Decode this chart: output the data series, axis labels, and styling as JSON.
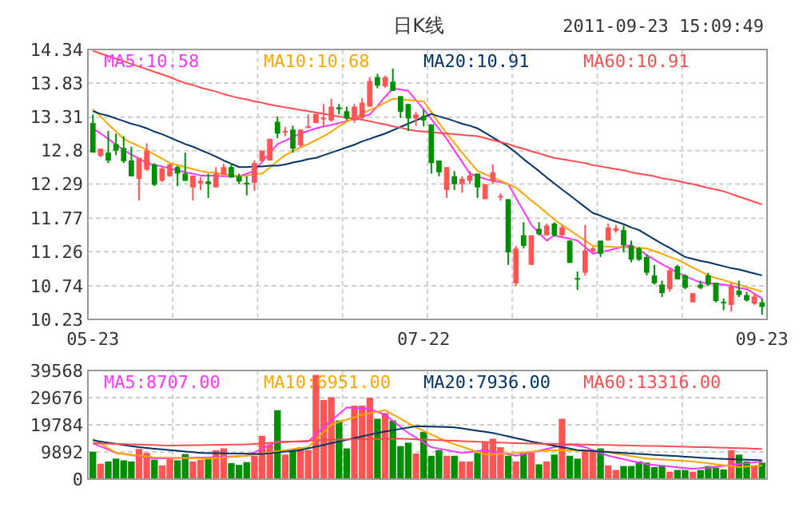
{
  "chart_data": [
    {
      "type": "candlestick",
      "title": "日K线",
      "annotations": [
        "2011-09-23 15:09:49"
      ],
      "categories": [
        "05-23",
        null,
        null,
        null,
        null,
        null,
        null,
        null,
        null,
        null,
        null,
        null,
        null,
        null,
        null,
        null,
        null,
        null,
        null,
        null,
        null,
        null,
        null,
        null,
        null,
        null,
        null,
        null,
        null,
        null,
        null,
        null,
        null,
        null,
        null,
        null,
        null,
        null,
        null,
        null,
        null,
        null,
        null,
        "07-22",
        null,
        null,
        null,
        null,
        null,
        null,
        null,
        null,
        null,
        null,
        null,
        null,
        null,
        null,
        null,
        null,
        null,
        null,
        null,
        null,
        null,
        null,
        null,
        null,
        null,
        null,
        null,
        null,
        null,
        null,
        null,
        null,
        null,
        null,
        null,
        null,
        null,
        null,
        null,
        null,
        null,
        null,
        null,
        "09-23"
      ],
      "ohlc": [
        [
          13.22,
          13.35,
          12.77,
          12.77
        ],
        [
          12.72,
          12.83,
          12.7,
          12.83
        ],
        [
          12.77,
          13.1,
          12.61,
          12.65
        ],
        [
          12.9,
          13.06,
          12.73,
          12.8
        ],
        [
          12.84,
          13.02,
          12.61,
          12.64
        ],
        [
          12.65,
          12.86,
          12.41,
          12.41
        ],
        [
          12.37,
          12.69,
          12.04,
          12.69
        ],
        [
          12.51,
          12.91,
          12.49,
          12.8
        ],
        [
          12.59,
          12.61,
          12.26,
          12.28
        ],
        [
          12.34,
          12.55,
          12.32,
          12.53
        ],
        [
          12.41,
          12.6,
          12.4,
          12.59
        ],
        [
          12.55,
          12.57,
          12.26,
          12.45
        ],
        [
          12.45,
          12.77,
          12.34,
          12.34
        ],
        [
          12.24,
          12.42,
          12.04,
          12.42
        ],
        [
          12.3,
          12.4,
          12.2,
          12.34
        ],
        [
          12.33,
          12.45,
          12.08,
          12.29
        ],
        [
          12.24,
          12.55,
          12.24,
          12.45
        ],
        [
          12.43,
          12.6,
          12.43,
          12.55
        ],
        [
          12.55,
          12.61,
          12.39,
          12.39
        ],
        [
          12.41,
          12.45,
          12.29,
          12.33
        ],
        [
          12.31,
          12.41,
          12.12,
          12.29
        ],
        [
          12.31,
          12.65,
          12.19,
          12.61
        ],
        [
          12.64,
          12.8,
          12.64,
          12.8
        ],
        [
          12.65,
          12.98,
          12.65,
          12.98
        ],
        [
          13.24,
          13.32,
          12.99,
          13.06
        ],
        [
          13.08,
          13.16,
          13.02,
          13.1
        ],
        [
          13.12,
          13.18,
          12.77,
          12.83
        ],
        [
          12.88,
          13.12,
          12.85,
          13.12
        ],
        [
          13.15,
          13.35,
          13.14,
          13.17
        ],
        [
          13.22,
          13.36,
          13.22,
          13.36
        ],
        [
          13.28,
          13.51,
          13.18,
          13.3
        ],
        [
          13.26,
          13.59,
          13.24,
          13.47
        ],
        [
          13.46,
          13.51,
          13.35,
          13.43
        ],
        [
          13.4,
          13.47,
          13.26,
          13.29
        ],
        [
          13.26,
          13.51,
          13.22,
          13.47
        ],
        [
          13.3,
          13.6,
          13.28,
          13.53
        ],
        [
          13.47,
          13.92,
          13.47,
          13.86
        ],
        [
          13.92,
          13.97,
          13.75,
          13.79
        ],
        [
          13.78,
          13.94,
          13.76,
          13.92
        ],
        [
          13.85,
          14.05,
          13.71,
          13.71
        ],
        [
          13.63,
          13.63,
          13.3,
          13.39
        ],
        [
          13.51,
          13.51,
          13.1,
          13.29
        ],
        [
          13.29,
          13.39,
          13.18,
          13.35
        ],
        [
          13.33,
          13.43,
          13.17,
          13.26
        ],
        [
          13.2,
          13.2,
          12.45,
          12.61
        ],
        [
          12.65,
          12.65,
          12.41,
          12.47
        ],
        [
          12.2,
          12.55,
          12.08,
          12.55
        ],
        [
          12.41,
          12.49,
          12.2,
          12.29
        ],
        [
          12.29,
          12.41,
          12.16,
          12.37
        ],
        [
          12.34,
          12.49,
          12.29,
          12.42
        ],
        [
          12.45,
          12.45,
          12.08,
          12.24
        ],
        [
          12.06,
          12.29,
          12.06,
          12.29
        ],
        [
          12.33,
          12.59,
          12.29,
          12.47
        ],
        [
          12.09,
          12.15,
          12.04,
          12.11
        ],
        [
          12.06,
          12.06,
          11.06,
          11.25
        ],
        [
          10.78,
          11.35,
          10.74,
          11.31
        ],
        [
          11.51,
          11.71,
          11.31,
          11.35
        ],
        [
          11.06,
          11.51,
          11.06,
          11.51
        ],
        [
          11.61,
          11.71,
          11.51,
          11.53
        ],
        [
          11.51,
          11.69,
          11.51,
          11.66
        ],
        [
          11.69,
          11.71,
          11.49,
          11.51
        ],
        [
          11.51,
          11.66,
          11.47,
          11.63
        ],
        [
          11.43,
          11.44,
          11.09,
          11.09
        ],
        [
          10.86,
          10.96,
          10.68,
          10.84
        ],
        [
          10.94,
          11.67,
          10.9,
          11.28
        ],
        [
          11.27,
          11.33,
          11.25,
          11.31
        ],
        [
          11.43,
          11.43,
          11.18,
          11.23
        ],
        [
          11.43,
          11.69,
          11.43,
          11.63
        ],
        [
          11.58,
          11.67,
          11.55,
          11.62
        ],
        [
          11.59,
          11.66,
          11.25,
          11.36
        ],
        [
          11.35,
          11.43,
          11.1,
          11.14
        ],
        [
          11.31,
          11.33,
          11.12,
          11.14
        ],
        [
          11.18,
          11.22,
          10.9,
          10.94
        ],
        [
          10.9,
          11.06,
          10.76,
          10.78
        ],
        [
          10.76,
          10.82,
          10.57,
          10.63
        ],
        [
          10.69,
          11.02,
          10.65,
          10.98
        ],
        [
          11.04,
          11.06,
          10.84,
          10.84
        ],
        [
          10.9,
          10.92,
          10.69,
          10.71
        ],
        [
          10.49,
          10.63,
          10.49,
          10.63
        ],
        [
          10.76,
          10.82,
          10.69,
          10.71
        ],
        [
          10.9,
          10.94,
          10.74,
          10.76
        ],
        [
          10.79,
          10.79,
          10.49,
          10.51
        ],
        [
          10.5,
          10.55,
          10.37,
          10.49
        ],
        [
          10.45,
          10.78,
          10.35,
          10.73
        ],
        [
          10.67,
          10.82,
          10.57,
          10.6
        ],
        [
          10.6,
          10.65,
          10.5,
          10.52
        ],
        [
          10.47,
          10.62,
          10.45,
          10.58
        ],
        [
          10.49,
          10.55,
          10.3,
          10.42
        ]
      ],
      "colors": [
        "#008f00",
        "#ff5555",
        "#008f00",
        "#008f00",
        "#008f00",
        "#008f00",
        "#ff5555",
        "#ff5555",
        "#008f00",
        "#ff5555",
        "#ff5555",
        "#008f00",
        "#008f00",
        "#ff5555",
        "#ff5555",
        "#008f00",
        "#ff5555",
        "#ff5555",
        "#008f00",
        "#008f00",
        "#008f00",
        "#ff5555",
        "#ff5555",
        "#ff5555",
        "#008f00",
        "#ff5555",
        "#008f00",
        "#ff5555",
        "#ff5555",
        "#ff5555",
        "#ff5555",
        "#ff5555",
        "#008f00",
        "#008f00",
        "#ff5555",
        "#ff5555",
        "#ff5555",
        "#008f00",
        "#ff5555",
        "#008f00",
        "#008f00",
        "#008f00",
        "#ff5555",
        "#008f00",
        "#008f00",
        "#008f00",
        "#ff5555",
        "#008f00",
        "#ff5555",
        "#ff5555",
        "#008f00",
        "#ff5555",
        "#ff5555",
        "#ff5555",
        "#008f00",
        "#ff5555",
        "#008f00",
        "#ff5555",
        "#008f00",
        "#ff5555",
        "#008f00",
        "#ff5555",
        "#008f00",
        "#008f00",
        "#ff5555",
        "#ff5555",
        "#008f00",
        "#ff5555",
        "#ff5555",
        "#008f00",
        "#008f00",
        "#008f00",
        "#008f00",
        "#008f00",
        "#008f00",
        "#ff5555",
        "#008f00",
        "#008f00",
        "#ff5555",
        "#008f00",
        "#008f00",
        "#008f00",
        "#008f00",
        "#ff5555",
        "#008f00",
        "#008f00",
        "#ff5555",
        "#008f00"
      ],
      "series": [
        {
          "type": "line",
          "name": "MA5:10.58",
          "color": "#ff33ff",
          "values": [
            13.14,
            13.06,
            12.98,
            12.89,
            12.81,
            12.74,
            12.68,
            12.61,
            12.58,
            12.56,
            12.53,
            12.5,
            12.47,
            12.45,
            12.42,
            12.42,
            12.42,
            12.41,
            12.41,
            12.41,
            12.45,
            12.49,
            12.63,
            12.76,
            12.9,
            12.95,
            13.01,
            13.06,
            13.1,
            13.14,
            13.17,
            13.19,
            13.22,
            13.25,
            13.29,
            13.32,
            13.35,
            13.48,
            13.62,
            13.75,
            13.73,
            13.71,
            13.57,
            13.43,
            13.28,
            13.13,
            12.98,
            12.8,
            12.63,
            12.45,
            12.41,
            12.37,
            12.34,
            12.32,
            12.29,
            12.08,
            11.88,
            11.67,
            11.55,
            11.43,
            11.51,
            11.48,
            11.46,
            11.43,
            11.33,
            11.23,
            11.26,
            11.28,
            11.31,
            11.34,
            11.36,
            11.29,
            11.21,
            11.14,
            11.07,
            11.01,
            10.94,
            10.89,
            10.84,
            10.79,
            10.78,
            10.77,
            10.76,
            10.74,
            10.71,
            10.69,
            10.62,
            10.55
          ]
        },
        {
          "type": "line",
          "name": "MA10:10.68",
          "color": "#ffa500",
          "values": [
            13.43,
            13.32,
            13.2,
            13.09,
            12.98,
            12.92,
            12.87,
            12.81,
            12.74,
            12.68,
            12.61,
            12.58,
            12.55,
            12.52,
            12.49,
            12.47,
            12.46,
            12.44,
            12.43,
            12.41,
            12.42,
            12.44,
            12.45,
            12.54,
            12.64,
            12.73,
            12.79,
            12.85,
            12.9,
            12.96,
            13.02,
            13.09,
            13.17,
            13.24,
            13.3,
            13.36,
            13.42,
            13.47,
            13.53,
            13.59,
            13.58,
            13.57,
            13.56,
            13.55,
            13.39,
            13.22,
            13.06,
            12.92,
            12.77,
            12.63,
            12.49,
            12.44,
            12.39,
            12.34,
            12.29,
            12.24,
            12.14,
            12.04,
            11.95,
            11.85,
            11.75,
            11.67,
            11.59,
            11.51,
            11.43,
            11.35,
            11.34,
            11.34,
            11.33,
            11.33,
            11.32,
            11.32,
            11.31,
            11.27,
            11.23,
            11.18,
            11.14,
            11.08,
            11.02,
            10.96,
            10.9,
            10.86,
            10.83,
            10.79,
            10.76,
            10.72,
            10.69,
            10.65
          ]
        },
        {
          "type": "line",
          "name": "MA20:10.91",
          "color": "#003366",
          "values": [
            13.4,
            13.36,
            13.33,
            13.29,
            13.25,
            13.21,
            13.18,
            13.14,
            13.09,
            13.05,
            13.0,
            12.95,
            12.9,
            12.86,
            12.81,
            12.76,
            12.71,
            12.65,
            12.6,
            12.55,
            12.55,
            12.56,
            12.56,
            12.57,
            12.57,
            12.59,
            12.62,
            12.64,
            12.67,
            12.69,
            12.73,
            12.77,
            12.81,
            12.85,
            12.89,
            12.94,
            12.98,
            13.02,
            13.06,
            13.11,
            13.16,
            13.21,
            13.26,
            13.31,
            13.36,
            13.32,
            13.29,
            13.25,
            13.21,
            13.18,
            13.14,
            13.07,
            13.0,
            12.93,
            12.86,
            12.77,
            12.67,
            12.58,
            12.49,
            12.39,
            12.3,
            12.21,
            12.12,
            12.03,
            11.94,
            11.85,
            11.81,
            11.76,
            11.72,
            11.68,
            11.63,
            11.59,
            11.52,
            11.45,
            11.38,
            11.32,
            11.25,
            11.18,
            11.15,
            11.12,
            11.1,
            11.07,
            11.04,
            11.01,
            10.99,
            10.96,
            10.93,
            10.9
          ]
        },
        {
          "type": "line",
          "name": "MA60:10.91",
          "color": "#ff4c4c",
          "values": [
            14.32,
            14.28,
            14.24,
            14.2,
            14.16,
            14.12,
            14.08,
            14.04,
            14.0,
            13.96,
            13.92,
            13.87,
            13.83,
            13.8,
            13.76,
            13.73,
            13.7,
            13.66,
            13.63,
            13.6,
            13.58,
            13.55,
            13.53,
            13.5,
            13.48,
            13.46,
            13.44,
            13.42,
            13.4,
            13.38,
            13.36,
            13.34,
            13.32,
            13.3,
            13.29,
            13.27,
            13.25,
            13.22,
            13.2,
            13.17,
            13.15,
            13.12,
            13.1,
            13.09,
            13.08,
            13.07,
            13.06,
            13.05,
            13.04,
            13.03,
            13.02,
            12.99,
            12.96,
            12.93,
            12.9,
            12.86,
            12.83,
            12.79,
            12.76,
            12.72,
            12.69,
            12.67,
            12.65,
            12.63,
            12.61,
            12.58,
            12.56,
            12.54,
            12.52,
            12.5,
            12.47,
            12.45,
            12.43,
            12.41,
            12.38,
            12.36,
            12.34,
            12.31,
            12.29,
            12.26,
            12.23,
            12.21,
            12.18,
            12.14,
            12.1,
            12.06,
            12.02,
            11.98
          ]
        }
      ],
      "ylim": [
        10.23,
        14.34
      ],
      "yticks": [
        10.23,
        10.74,
        11.26,
        11.77,
        12.29,
        12.8,
        13.31,
        13.83,
        14.34
      ],
      "grid": true,
      "legend": "top"
    },
    {
      "type": "bar",
      "tick_labels": "y",
      "categories": [
        null,
        null,
        null,
        null,
        null,
        null,
        null,
        null,
        null,
        null,
        null,
        null,
        null,
        null,
        null,
        null,
        null,
        null,
        null,
        null,
        null,
        null,
        null,
        null,
        null,
        null,
        null,
        null,
        null,
        null,
        null,
        null,
        null,
        null,
        null,
        null,
        null,
        null,
        null,
        null,
        null,
        null,
        null,
        null,
        null,
        null,
        null,
        null,
        null,
        null,
        null,
        null,
        null,
        null,
        null,
        null,
        null,
        null,
        null,
        null,
        null,
        null,
        null,
        null,
        null,
        null,
        null,
        null,
        null,
        null,
        null,
        null,
        null,
        null,
        null,
        null,
        null,
        null,
        null,
        null,
        null,
        null,
        null,
        null,
        null,
        null,
        null,
        null
      ],
      "values": [
        9955,
        5600,
        6430,
        7470,
        6840,
        6430,
        10990,
        9540,
        7050,
        4980,
        7260,
        6840,
        9130,
        6430,
        7050,
        7300,
        10580,
        11200,
        5810,
        5180,
        6200,
        8500,
        15760,
        12650,
        25100,
        8920,
        10990,
        11610,
        10580,
        37950,
        28830,
        29860,
        21360,
        11200,
        26750,
        26750,
        29660,
        21980,
        24060,
        21360,
        12030,
        13270,
        9330,
        17210,
        8500,
        10580,
        8500,
        8500,
        6430,
        6430,
        9540,
        13690,
        14730,
        11610,
        8500,
        6430,
        9540,
        9540,
        5390,
        6430,
        8920,
        21980,
        8500,
        7470,
        10580,
        10580,
        11200,
        4980,
        3320,
        4770,
        4770,
        6430,
        6010,
        4360,
        4770,
        2700,
        3320,
        3320,
        2700,
        3320,
        4770,
        4200,
        3500,
        10580,
        8920,
        6430,
        5000,
        6000
      ],
      "colors": [
        "#008f00",
        "#ff5555",
        "#008f00",
        "#008f00",
        "#008f00",
        "#008f00",
        "#ff5555",
        "#ff5555",
        "#008f00",
        "#ff5555",
        "#ff5555",
        "#008f00",
        "#008f00",
        "#ff5555",
        "#ff5555",
        "#008f00",
        "#ff5555",
        "#ff5555",
        "#008f00",
        "#008f00",
        "#008f00",
        "#ff5555",
        "#ff5555",
        "#ff5555",
        "#008f00",
        "#ff5555",
        "#008f00",
        "#ff5555",
        "#ff5555",
        "#ff5555",
        "#ff5555",
        "#ff5555",
        "#008f00",
        "#008f00",
        "#ff5555",
        "#ff5555",
        "#ff5555",
        "#008f00",
        "#ff5555",
        "#008f00",
        "#008f00",
        "#008f00",
        "#ff5555",
        "#008f00",
        "#008f00",
        "#008f00",
        "#ff5555",
        "#008f00",
        "#ff5555",
        "#ff5555",
        "#008f00",
        "#ff5555",
        "#ff5555",
        "#ff5555",
        "#008f00",
        "#ff5555",
        "#008f00",
        "#ff5555",
        "#008f00",
        "#ff5555",
        "#008f00",
        "#ff5555",
        "#008f00",
        "#008f00",
        "#ff5555",
        "#ff5555",
        "#008f00",
        "#ff5555",
        "#ff5555",
        "#008f00",
        "#008f00",
        "#008f00",
        "#008f00",
        "#008f00",
        "#008f00",
        "#ff5555",
        "#008f00",
        "#008f00",
        "#ff5555",
        "#008f00",
        "#008f00",
        "#008f00",
        "#008f00",
        "#ff5555",
        "#008f00",
        "#008f00",
        "#ff5555",
        "#008f00"
      ],
      "series": [
        {
          "type": "line",
          "name": "MA5:8707.00",
          "color": "#ff33ff",
          "values": [
            13070,
            11890,
            10720,
            9540,
            9130,
            8710,
            8300,
            7890,
            7470,
            7530,
            7590,
            7650,
            7700,
            7760,
            7820,
            7880,
            8000,
            8130,
            8250,
            8380,
            8500,
            9800,
            11100,
            12400,
            13690,
            13690,
            13690,
            13690,
            13690,
            16280,
            18870,
            21290,
            23710,
            26130,
            25920,
            25720,
            25510,
            24480,
            23440,
            21230,
            19010,
            16800,
            15070,
            13340,
            11610,
            11090,
            10580,
            10060,
            9540,
            9890,
            10230,
            10580,
            10060,
            9540,
            9020,
            8500,
            9120,
            9740,
            10370,
            10990,
            11610,
            12130,
            12650,
            12130,
            11610,
            10570,
            9540,
            8500,
            7880,
            7260,
            6640,
            6010,
            5390,
            5110,
            4840,
            4560,
            4280,
            4010,
            3730,
            3990,
            4250,
            4510,
            4770,
            5100,
            5430,
            5770,
            6100,
            6430
          ]
        },
        {
          "type": "line",
          "name": "MA10:6951.00",
          "color": "#ffa500",
          "values": [
            14730,
            13000,
            11270,
            9540,
            9210,
            8880,
            8540,
            8210,
            7880,
            7820,
            7760,
            7700,
            7650,
            7590,
            7530,
            7470,
            7680,
            7880,
            8090,
            8290,
            8500,
            8920,
            9340,
            9750,
            10170,
            10580,
            10920,
            11270,
            11610,
            14380,
            17140,
            19910,
            20790,
            21680,
            22560,
            23440,
            23990,
            24550,
            25100,
            23540,
            21990,
            20430,
            18870,
            17580,
            16280,
            14990,
            13690,
            12740,
            11790,
            10830,
            9880,
            8920,
            9080,
            9230,
            9390,
            9540,
            9750,
            9960,
            10160,
            10370,
            10580,
            10510,
            10440,
            10370,
            10300,
            10230,
            10160,
            9710,
            9260,
            8820,
            8370,
            7920,
            7470,
            7300,
            7130,
            6950,
            6780,
            6600,
            6430,
            6090,
            5740,
            5400,
            5050,
            4710,
            4360,
            4570,
            4770,
            4980
          ]
        },
        {
          "type": "line",
          "name": "MA20:7936.00",
          "color": "#003366",
          "values": [
            14100,
            13690,
            13270,
            12860,
            12440,
            12030,
            11610,
            11350,
            11090,
            10830,
            10580,
            10320,
            10060,
            9800,
            9540,
            9490,
            9440,
            9390,
            9340,
            9280,
            9230,
            9180,
            9130,
            9420,
            9710,
            10000,
            10290,
            10580,
            11200,
            11820,
            12450,
            13070,
            13690,
            14310,
            14930,
            15560,
            16180,
            16800,
            17300,
            17800,
            18290,
            18790,
            19290,
            19210,
            19120,
            19040,
            18950,
            18870,
            18460,
            18040,
            17630,
            17210,
            16800,
            16180,
            15560,
            14930,
            14310,
            13690,
            13170,
            12650,
            12130,
            11620,
            11100,
            10580,
            10400,
            10220,
            10040,
            9860,
            9690,
            9510,
            9330,
            9160,
            9000,
            8830,
            8670,
            8500,
            8330,
            8160,
            7990,
            7810,
            7640,
            7470,
            7370,
            7260,
            7160,
            7050,
            6950,
            6840
          ]
        },
        {
          "type": "line",
          "name": "MA60:13316.00",
          "color": "#ff4c4c",
          "values": [
            13070,
            12990,
            12900,
            12820,
            12740,
            12660,
            12570,
            12490,
            12410,
            12320,
            12240,
            12280,
            12320,
            12360,
            12400,
            12450,
            12490,
            12530,
            12570,
            12610,
            12650,
            12820,
            12980,
            13150,
            13310,
            13480,
            13650,
            13810,
            13980,
            14140,
            14310,
            14350,
            14390,
            14440,
            14480,
            14520,
            14560,
            14600,
            14650,
            14690,
            14730,
            14620,
            14510,
            14400,
            14290,
            14180,
            14060,
            13950,
            13840,
            13730,
            13620,
            13510,
            13400,
            13290,
            13180,
            13070,
            13010,
            12960,
            12900,
            12850,
            12790,
            12740,
            12680,
            12630,
            12570,
            12520,
            12460,
            12410,
            12350,
            12300,
            12240,
            12180,
            12110,
            12050,
            11990,
            11930,
            11860,
            11800,
            11740,
            11670,
            11610,
            11520,
            11430,
            11340,
            11260,
            11170,
            11080,
            10990
          ]
        }
      ],
      "ylim": [
        0,
        39568
      ],
      "yticks": [
        0,
        9892,
        19784,
        29676,
        39568
      ],
      "grid": true,
      "legend": "top"
    }
  ]
}
